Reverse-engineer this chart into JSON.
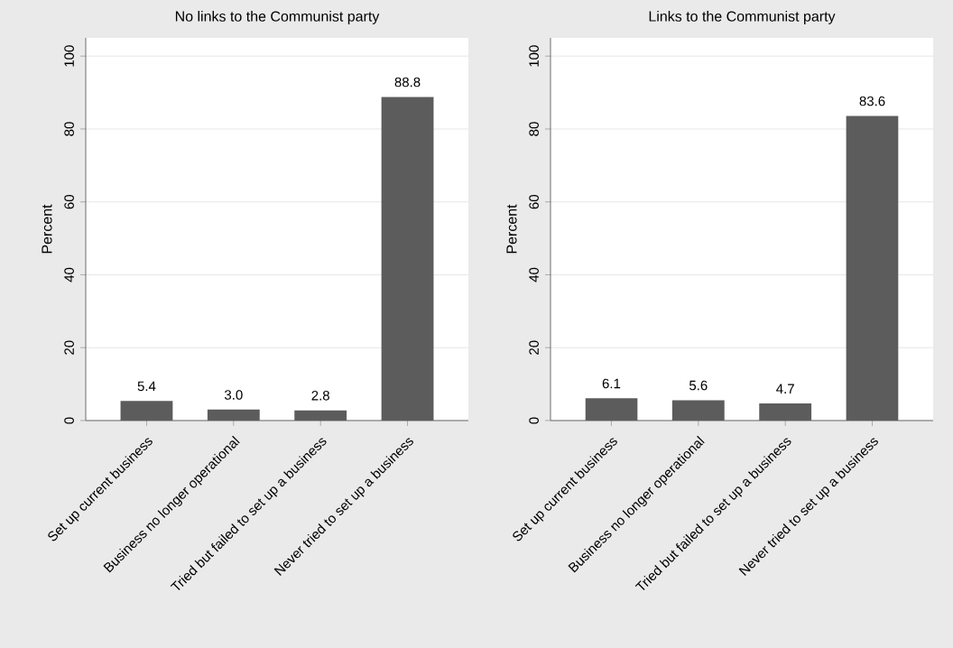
{
  "chart_data": [
    {
      "type": "bar",
      "title": "No links to the Communist party",
      "ylabel": "Percent",
      "categories": [
        "Set up current business",
        "Business no longer operational",
        "Tried but failed to set up a business",
        "Never tried to set up a business"
      ],
      "values": [
        5.4,
        3.0,
        2.8,
        88.8
      ],
      "value_labels": [
        "5.4",
        "3.0",
        "2.8",
        "88.8"
      ],
      "color": "#5c5c5c",
      "ylim": [
        0,
        105
      ],
      "yticks": [
        0,
        20,
        40,
        60,
        80,
        100
      ],
      "grid": "y"
    },
    {
      "type": "bar",
      "title": "Links to the Communist party",
      "ylabel": "Percent",
      "categories": [
        "Set up current business",
        "Business no longer operational",
        "Tried but failed to set up a business",
        "Never tried to set up a business"
      ],
      "values": [
        6.1,
        5.6,
        4.7,
        83.6
      ],
      "value_labels": [
        "6.1",
        "5.6",
        "4.7",
        "83.6"
      ],
      "color": "#5c5c5c",
      "ylim": [
        0,
        105
      ],
      "yticks": [
        0,
        20,
        40,
        60,
        80,
        100
      ],
      "grid": "y"
    }
  ]
}
